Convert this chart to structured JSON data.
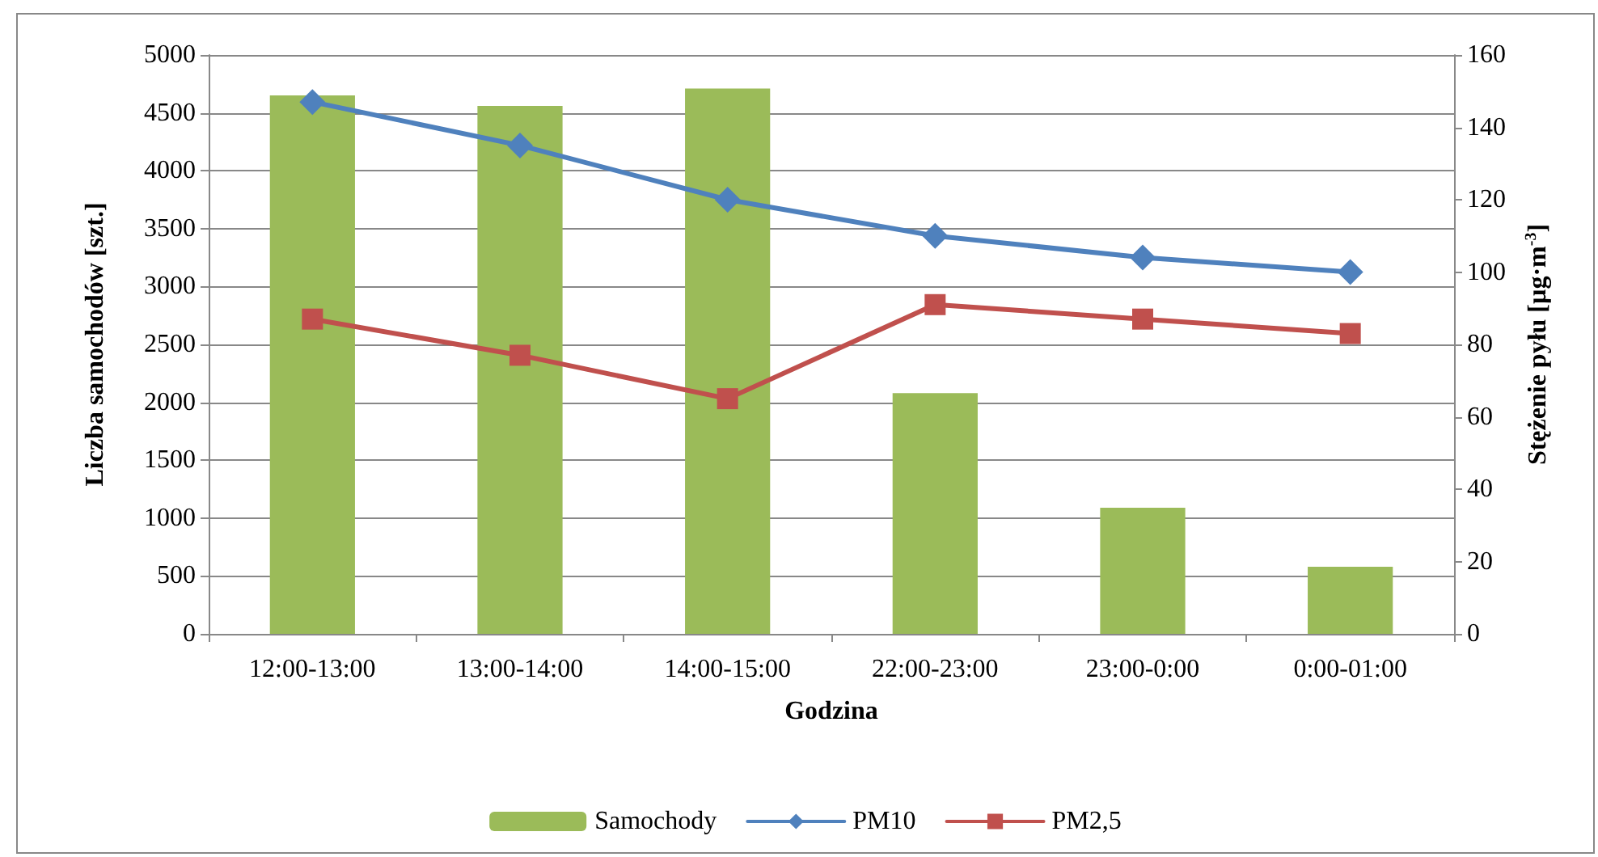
{
  "chart_data": {
    "type": "bar",
    "xlabel": "Godzina",
    "ylabel": "Liczba samochodów [szt.]",
    "y2label": "Stężenie pyłu [µg·m$^{-3}$]",
    "categories": [
      "12:00-13:00",
      "13:00-14:00",
      "14:00-15:00",
      "22:00-23:00",
      "23:00-0:00",
      "0:00-01:00"
    ],
    "series": [
      {
        "name": "Samochody",
        "color": "#9bbb59",
        "values": [
          4650,
          4560,
          4710,
          2080,
          1090,
          580
        ]
      },
      {
        "name": "PM10",
        "type": "line",
        "axis": "y2",
        "color": "#4f81bd",
        "marker": "diamond",
        "values": [
          147,
          135,
          120,
          110,
          104,
          100
        ]
      },
      {
        "name": "PM2,5",
        "type": "line",
        "axis": "y2",
        "color": "#c0504d",
        "marker": "square",
        "values": [
          87,
          77,
          65,
          91,
          87,
          83
        ]
      }
    ],
    "ylim": [
      0,
      5000
    ],
    "yticks": [
      0,
      500,
      1000,
      1500,
      2000,
      2500,
      3000,
      3500,
      4000,
      4500,
      5000
    ],
    "y2lim": [
      0,
      160
    ],
    "y2ticks": [
      0,
      20,
      40,
      60,
      80,
      100,
      120,
      140,
      160
    ],
    "grid": "y",
    "legend": "bottom"
  }
}
